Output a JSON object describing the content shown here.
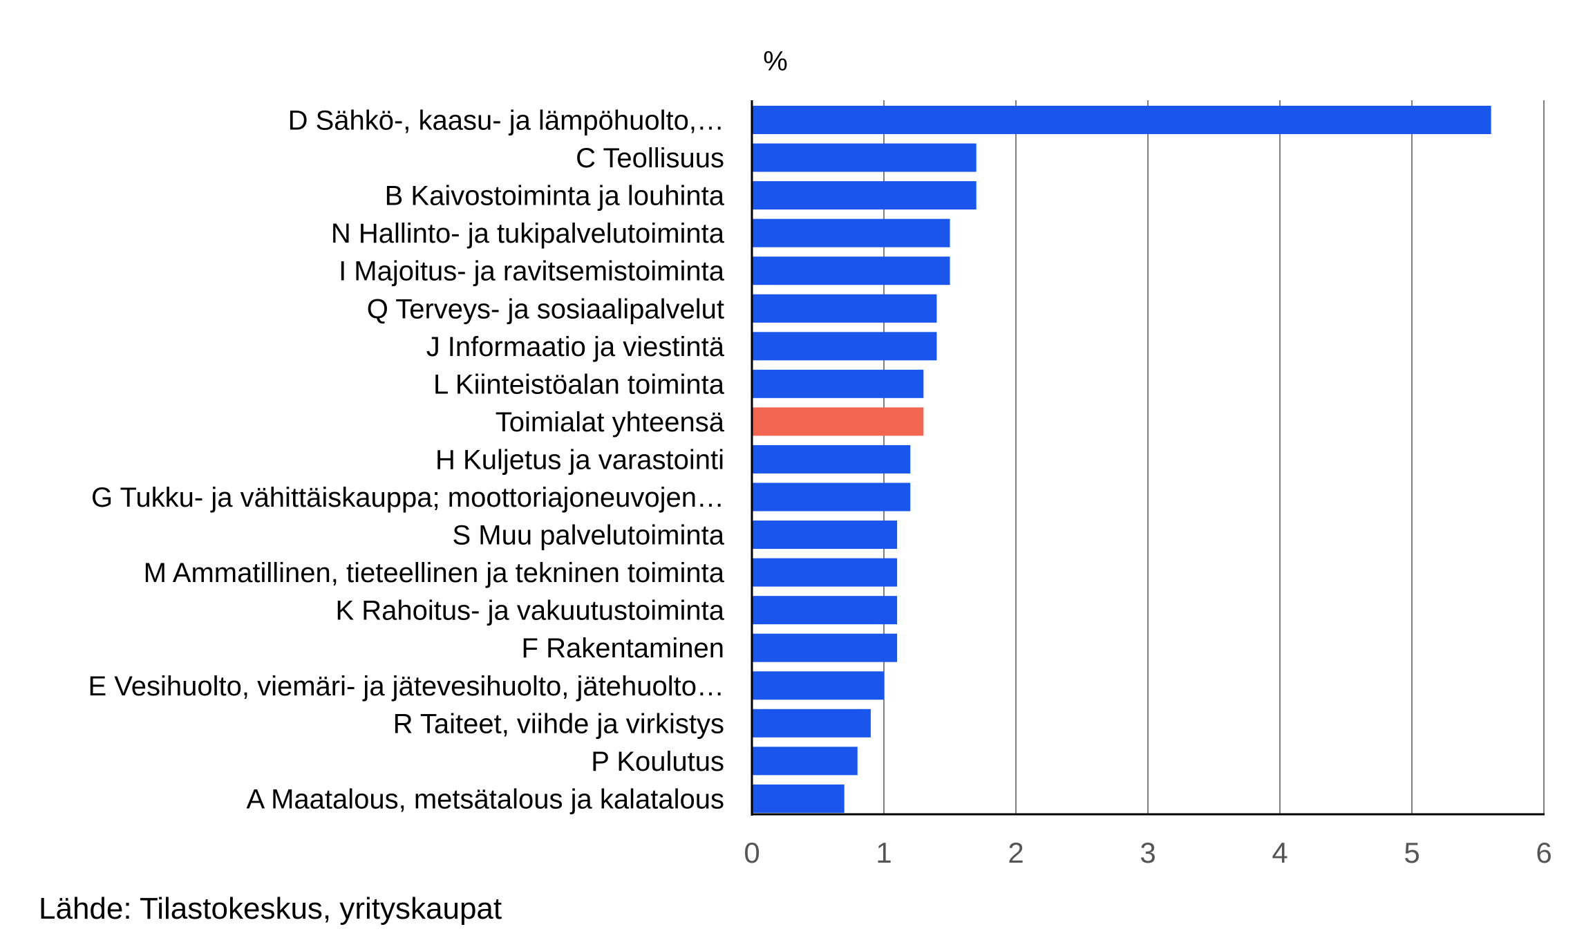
{
  "unit_label": "%",
  "source": "Lähde: Tilastokeskus, yrityskaupat",
  "colors": {
    "bar": "#1A56EB",
    "highlight": "#F26651",
    "grid": "#555555",
    "axis": "#000000"
  },
  "chart_data": {
    "type": "bar",
    "orientation": "horizontal",
    "title": "",
    "xlabel": "",
    "ylabel": "%",
    "xlim": [
      0,
      6
    ],
    "ticks": [
      0,
      1,
      2,
      3,
      4,
      5,
      6
    ],
    "grid": "vertical",
    "legend": "none",
    "categories": [
      "D Sähkö-, kaasu- ja lämpöhuolto,…",
      "C Teollisuus",
      "B Kaivostoiminta ja louhinta",
      "N Hallinto- ja tukipalvelutoiminta",
      "I Majoitus- ja ravitsemistoiminta",
      "Q Terveys- ja sosiaalipalvelut",
      "J Informaatio ja viestintä",
      "L Kiinteistöalan toiminta",
      "Toimialat yhteensä",
      "H Kuljetus ja varastointi",
      "G Tukku- ja vähittäiskauppa; moottoriajoneuvojen…",
      "S Muu palvelutoiminta",
      "M Ammatillinen, tieteellinen ja tekninen toiminta",
      "K Rahoitus- ja vakuutustoiminta",
      "F Rakentaminen",
      "E Vesihuolto, viemäri- ja jätevesihuolto, jätehuolto…",
      "R Taiteet, viihde ja virkistys",
      "P Koulutus",
      "A Maatalous, metsätalous ja kalatalous"
    ],
    "values": [
      5.6,
      1.7,
      1.7,
      1.5,
      1.5,
      1.4,
      1.4,
      1.3,
      1.3,
      1.2,
      1.2,
      1.1,
      1.1,
      1.1,
      1.1,
      1.0,
      0.9,
      0.8,
      0.7
    ],
    "highlight_category": "Toimialat yhteensä"
  }
}
